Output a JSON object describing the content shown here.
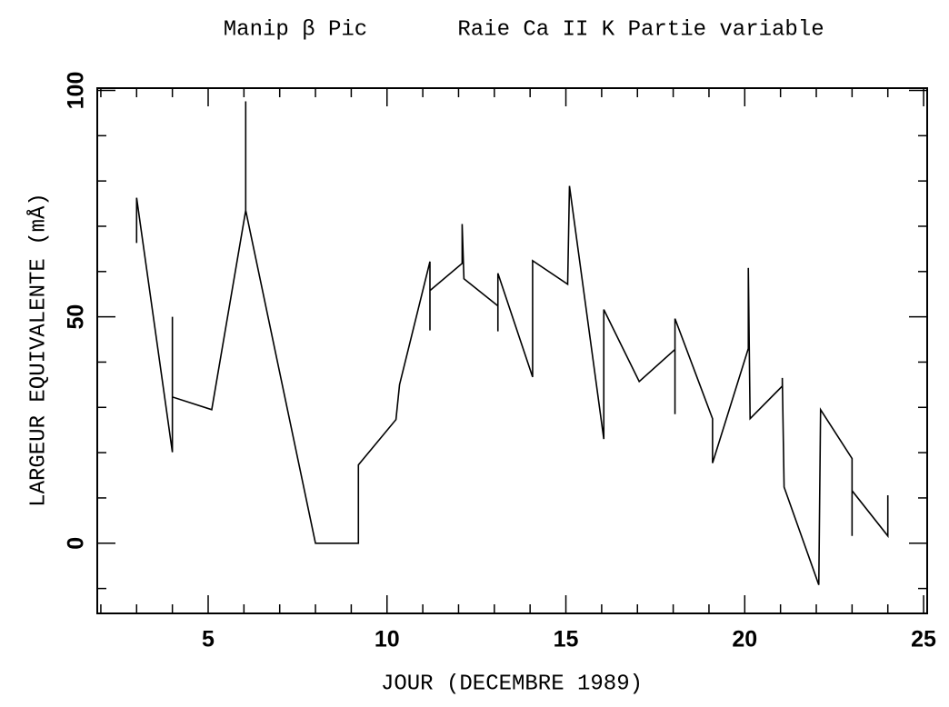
{
  "chart_data": {
    "type": "line",
    "title": "Manip β Pic",
    "subtitle": "Raie Ca II K  Partie variable",
    "xlabel": "JOUR (DECEMBRE 1989)",
    "ylabel": "LARGEUR EQUIVALENTE (mÅ)",
    "series": [
      {
        "color": "#000000",
        "x": [
          3,
          3,
          4,
          4,
          4,
          5.1,
          6.05,
          6.05,
          6.05,
          8,
          9.2,
          9.2,
          10.25,
          10.35,
          11.2,
          11.2,
          11.2,
          12.1,
          12.1,
          12.15,
          13.1,
          13.1,
          13.1,
          14.07,
          14.07,
          15.05,
          15.1,
          16.06,
          16.06,
          17.05,
          18.05,
          18.05,
          18.05,
          19.1,
          19.1,
          20.1,
          20.1,
          20.15,
          21.05,
          21.05,
          21.1,
          22.07,
          22.12,
          23,
          23,
          23,
          24,
          24
        ],
        "values": [
          66.3,
          76.3,
          20.1,
          50,
          32.3,
          29.5,
          73.5,
          97.6,
          73.5,
          0,
          0,
          17.3,
          27.3,
          35,
          62.2,
          47,
          55.8,
          61.8,
          70.5,
          58.4,
          52.4,
          46.8,
          59.6,
          36.7,
          62.4,
          57.2,
          78.9,
          23,
          51.6,
          35.7,
          42.8,
          28.5,
          49.6,
          27.5,
          17.7,
          43,
          60.8,
          27.5,
          34.7,
          36.5,
          12.4,
          -9.2,
          29.5,
          18.7,
          1.6,
          11.6,
          1.6,
          10.6
        ]
      }
    ],
    "xlim": [
      1.9,
      25.1
    ],
    "ylim": [
      -15.5,
      100.5
    ],
    "xticks": [
      5,
      10,
      15,
      20,
      25
    ],
    "yticks": [
      0,
      50,
      100
    ],
    "xminor": [
      2,
      3,
      4,
      6,
      7,
      8,
      9,
      11,
      12,
      13,
      14,
      16,
      17,
      18,
      19,
      21,
      22,
      23,
      24
    ],
    "yminor": [
      -10,
      10,
      20,
      30,
      40,
      60,
      70,
      80,
      90
    ]
  }
}
